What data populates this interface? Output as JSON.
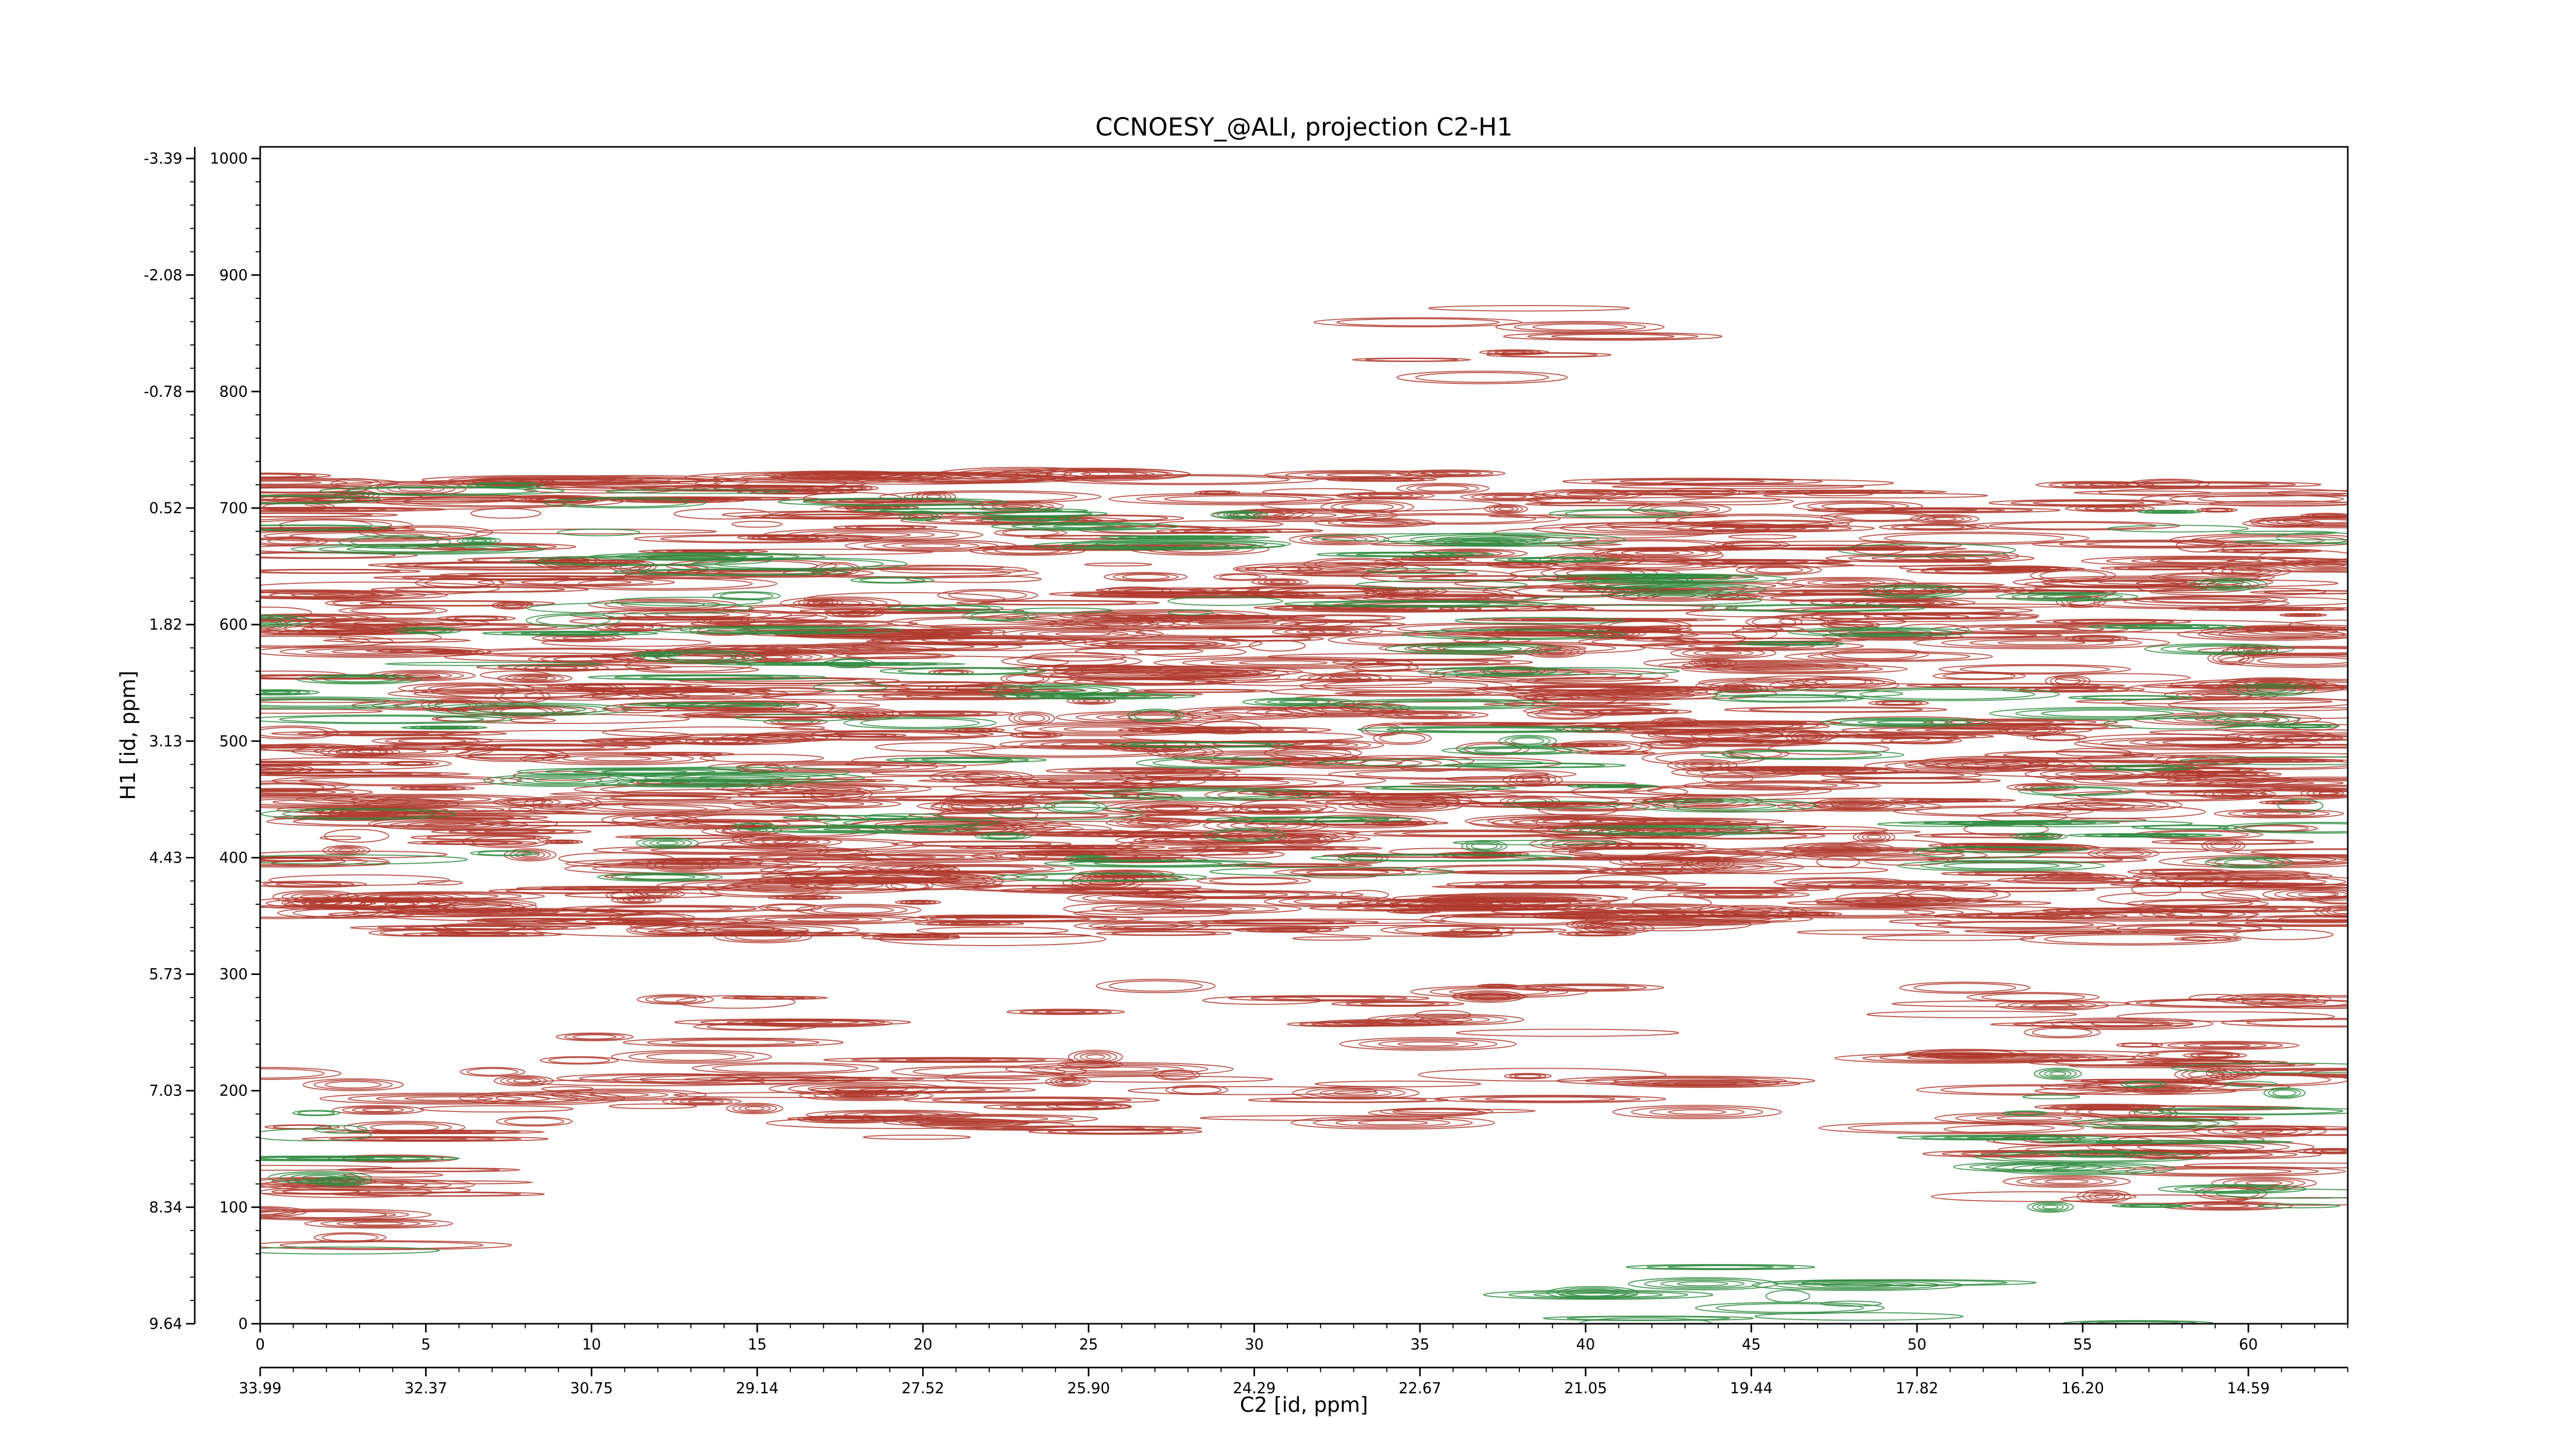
{
  "chart_data": {
    "type": "contour",
    "title": "CCNOESY_@ALI, projection C2-H1",
    "xlabel": "C2 [id, ppm]",
    "ylabel": "H1 [id, ppm]",
    "xlim": [
      0,
      63
    ],
    "ylim": [
      0,
      1010
    ],
    "x_ticks": [
      0,
      5,
      10,
      15,
      20,
      25,
      30,
      35,
      40,
      45,
      50,
      55,
      60
    ],
    "y_ticks": [
      0,
      100,
      200,
      300,
      400,
      500,
      600,
      700,
      800,
      900,
      1000
    ],
    "x_ppm_tick_labels": [
      "33.99",
      "32.37",
      "30.75",
      "29.14",
      "27.52",
      "25.90",
      "24.29",
      "22.67",
      "21.05",
      "19.44",
      "17.82",
      "16.20",
      "14.59"
    ],
    "y_ppm_tick_labels": [
      "9.64",
      "8.34",
      "7.03",
      "5.73",
      "4.43",
      "3.13",
      "1.82",
      "0.52",
      "-0.78",
      "-2.08",
      "-3.39"
    ],
    "series": [
      {
        "sign": "positive",
        "color": "#b03a2e",
        "bands": [
          {
            "y0": 160,
            "y1": 230,
            "x0": 0,
            "x1": 26,
            "density": 0.55
          },
          {
            "y0": 170,
            "y1": 215,
            "x0": 27,
            "x1": 47,
            "density": 0.4
          },
          {
            "y0": 240,
            "y1": 290,
            "x0": 10,
            "x1": 42,
            "density": 0.3
          },
          {
            "y0": 100,
            "y1": 300,
            "x0": 51,
            "x1": 63,
            "density": 0.6
          },
          {
            "y0": 60,
            "y1": 160,
            "x0": 0,
            "x1": 6,
            "density": 0.6
          },
          {
            "y0": 330,
            "y1": 450,
            "x0": 0,
            "x1": 63,
            "density": 0.95
          },
          {
            "y0": 450,
            "y1": 550,
            "x0": 0,
            "x1": 63,
            "density": 0.85
          },
          {
            "y0": 550,
            "y1": 650,
            "x0": 0,
            "x1": 63,
            "density": 0.85
          },
          {
            "y0": 650,
            "y1": 730,
            "x0": 0,
            "x1": 63,
            "density": 0.75
          },
          {
            "y0": 780,
            "y1": 880,
            "x0": 33,
            "x1": 41,
            "density": 0.2
          }
        ]
      },
      {
        "sign": "negative",
        "color": "#2e8b3e",
        "bands": [
          {
            "y0": 60,
            "y1": 200,
            "x0": 0,
            "x1": 3,
            "density": 0.35
          },
          {
            "y0": 100,
            "y1": 220,
            "x0": 52,
            "x1": 63,
            "density": 0.3
          },
          {
            "y0": 380,
            "y1": 720,
            "x0": 0,
            "x1": 63,
            "density": 0.15
          },
          {
            "y0": 0,
            "y1": 60,
            "x0": 38,
            "x1": 59,
            "density": 0.2
          }
        ]
      }
    ]
  }
}
